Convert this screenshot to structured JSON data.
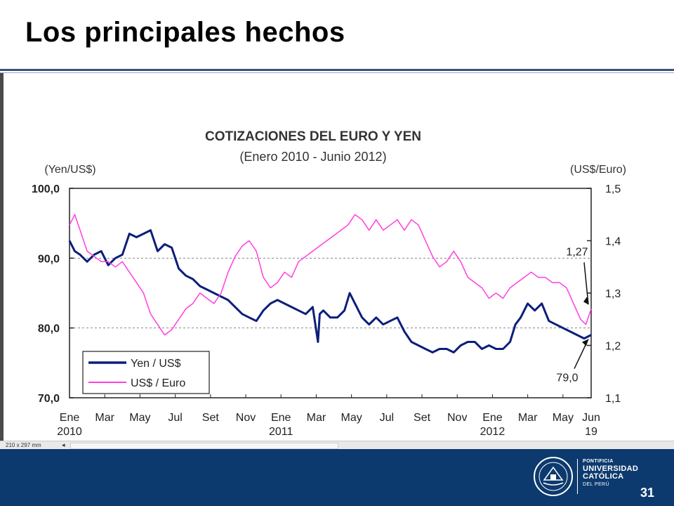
{
  "slide": {
    "title": "Los principales hechos",
    "page_number": "31"
  },
  "status_bar": {
    "page_size": "210 x 297 mm",
    "nav_arrow": "◂"
  },
  "logo": {
    "line1": "PONTIFICIA",
    "line2": "UNIVERSIDAD",
    "line3": "CATÓLICA",
    "line4": "DEL PERÚ",
    "seal_text": "ET LUX IN TENEBRIS LUCET"
  },
  "colors": {
    "yen_series": "#0b1f7a",
    "euro_series": "#ff3fe0",
    "footer": "#0d3a6e"
  },
  "chart_data": {
    "type": "line",
    "title": "COTIZACIONES DEL EURO Y YEN",
    "subtitle": "(Enero 2010 - Junio 2012)",
    "y_left_label": "(Yen/US$)",
    "y_right_label": "(US$/Euro)",
    "y_left_range": [
      70,
      100
    ],
    "y_right_range": [
      1.1,
      1.5
    ],
    "y_left_ticks": [
      "70,0",
      "80,0",
      "90,0",
      "100,0"
    ],
    "y_right_ticks": [
      "1,1",
      "1,2",
      "1,3",
      "1,4",
      "1,5"
    ],
    "gridlines": [
      80,
      90
    ],
    "x_ticks": [
      {
        "label": "Ene",
        "year": "2010",
        "t": 0
      },
      {
        "label": "Mar",
        "year": "",
        "t": 2
      },
      {
        "label": "May",
        "year": "",
        "t": 4
      },
      {
        "label": "Jul",
        "year": "",
        "t": 6
      },
      {
        "label": "Set",
        "year": "",
        "t": 8
      },
      {
        "label": "Nov",
        "year": "",
        "t": 10
      },
      {
        "label": "Ene",
        "year": "2011",
        "t": 12
      },
      {
        "label": "Mar",
        "year": "",
        "t": 14
      },
      {
        "label": "May",
        "year": "",
        "t": 16
      },
      {
        "label": "Jul",
        "year": "",
        "t": 18
      },
      {
        "label": "Set",
        "year": "",
        "t": 20
      },
      {
        "label": "Nov",
        "year": "",
        "t": 22
      },
      {
        "label": "Ene",
        "year": "2012",
        "t": 24
      },
      {
        "label": "Mar",
        "year": "",
        "t": 26
      },
      {
        "label": "May",
        "year": "",
        "t": 28
      },
      {
        "label": "Jun",
        "year": "19",
        "t": 29.6
      }
    ],
    "t_range": [
      0,
      29.6
    ],
    "legend": {
      "placement": "bottom-left"
    },
    "series": [
      {
        "name": "Yen / US$",
        "axis": "left",
        "x": [
          0,
          0.3,
          0.6,
          1.0,
          1.4,
          1.8,
          2.2,
          2.6,
          3.0,
          3.4,
          3.8,
          4.2,
          4.6,
          5.0,
          5.4,
          5.8,
          6.2,
          6.6,
          7.0,
          7.4,
          7.8,
          8.2,
          8.6,
          9.0,
          9.4,
          9.8,
          10.2,
          10.6,
          11.0,
          11.4,
          11.8,
          12.2,
          12.6,
          13.0,
          13.4,
          13.8,
          14.1,
          14.2,
          14.4,
          14.8,
          15.2,
          15.6,
          15.9,
          16.2,
          16.6,
          17.0,
          17.4,
          17.8,
          18.2,
          18.6,
          19.0,
          19.4,
          19.8,
          20.2,
          20.6,
          21.0,
          21.4,
          21.8,
          22.2,
          22.6,
          23.0,
          23.4,
          23.8,
          24.2,
          24.6,
          25.0,
          25.3,
          25.6,
          26.0,
          26.4,
          26.8,
          27.2,
          27.6,
          28.0,
          28.4,
          28.8,
          29.2,
          29.6
        ],
        "values": [
          92.5,
          91.0,
          90.5,
          89.5,
          90.5,
          91.0,
          89.0,
          90.0,
          90.5,
          93.5,
          93.0,
          93.5,
          94.0,
          91.0,
          92.0,
          91.5,
          88.5,
          87.5,
          87.0,
          86.0,
          85.5,
          85.0,
          84.5,
          84.0,
          83.0,
          82.0,
          81.5,
          81.0,
          82.5,
          83.5,
          84.0,
          83.5,
          83.0,
          82.5,
          82.0,
          83.0,
          78.0,
          82.0,
          82.5,
          81.5,
          81.5,
          82.5,
          85.0,
          83.5,
          81.5,
          80.5,
          81.5,
          80.5,
          81.0,
          81.5,
          79.5,
          78.0,
          77.5,
          77.0,
          76.5,
          77.0,
          77.0,
          76.5,
          77.5,
          78.0,
          78.0,
          77.0,
          77.5,
          77.0,
          77.0,
          78.0,
          80.5,
          81.5,
          83.5,
          82.5,
          83.5,
          81.0,
          80.5,
          80.0,
          79.5,
          79.0,
          78.5,
          79.0
        ]
      },
      {
        "name": "US$ / Euro",
        "axis": "right",
        "x": [
          0,
          0.3,
          0.6,
          1.0,
          1.4,
          1.8,
          2.2,
          2.6,
          3.0,
          3.4,
          3.8,
          4.2,
          4.6,
          5.0,
          5.4,
          5.8,
          6.2,
          6.6,
          7.0,
          7.4,
          7.8,
          8.2,
          8.6,
          9.0,
          9.4,
          9.8,
          10.2,
          10.6,
          11.0,
          11.4,
          11.8,
          12.2,
          12.6,
          13.0,
          13.4,
          13.8,
          14.2,
          14.6,
          15.0,
          15.4,
          15.8,
          16.2,
          16.6,
          17.0,
          17.4,
          17.8,
          18.2,
          18.6,
          19.0,
          19.4,
          19.8,
          20.2,
          20.6,
          21.0,
          21.4,
          21.8,
          22.2,
          22.6,
          23.0,
          23.4,
          23.8,
          24.2,
          24.6,
          25.0,
          25.4,
          25.8,
          26.2,
          26.6,
          27.0,
          27.4,
          27.8,
          28.2,
          28.6,
          29.0,
          29.3,
          29.6
        ],
        "values": [
          1.43,
          1.45,
          1.42,
          1.38,
          1.37,
          1.36,
          1.36,
          1.35,
          1.36,
          1.34,
          1.32,
          1.3,
          1.26,
          1.24,
          1.22,
          1.23,
          1.25,
          1.27,
          1.28,
          1.3,
          1.29,
          1.28,
          1.3,
          1.34,
          1.37,
          1.39,
          1.4,
          1.38,
          1.33,
          1.31,
          1.32,
          1.34,
          1.33,
          1.36,
          1.37,
          1.38,
          1.39,
          1.4,
          1.41,
          1.42,
          1.43,
          1.45,
          1.44,
          1.42,
          1.44,
          1.42,
          1.43,
          1.44,
          1.42,
          1.44,
          1.43,
          1.4,
          1.37,
          1.35,
          1.36,
          1.38,
          1.36,
          1.33,
          1.32,
          1.31,
          1.29,
          1.3,
          1.29,
          1.31,
          1.32,
          1.33,
          1.34,
          1.33,
          1.33,
          1.32,
          1.32,
          1.31,
          1.28,
          1.25,
          1.24,
          1.27
        ]
      }
    ],
    "annotations": [
      {
        "text": "1,27",
        "t": 29.6,
        "axis": "right",
        "value": 1.27
      },
      {
        "text": "79,0",
        "t": 29.6,
        "axis": "left",
        "value": 79.0
      }
    ]
  }
}
